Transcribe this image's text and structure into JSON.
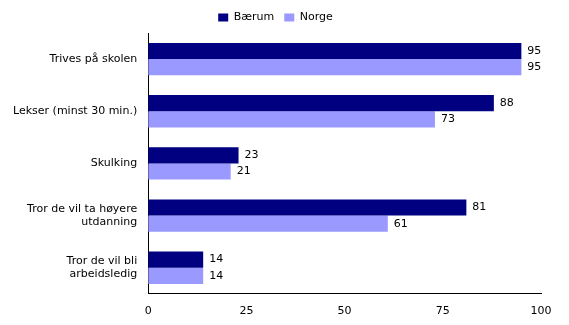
{
  "chart_data": {
    "type": "bar",
    "orientation": "horizontal",
    "categories": [
      "Trives på skolen",
      "Lekser (minst 30 min.)",
      "Skulking",
      "Tror de vil ta høyere utdanning",
      "Tror de vil bli arbeidsledig"
    ],
    "series": [
      {
        "name": "Bærum",
        "color": "#000080",
        "values": [
          95,
          88,
          23,
          81,
          14
        ]
      },
      {
        "name": "Norge",
        "color": "#9999ff",
        "values": [
          95,
          73,
          21,
          61,
          14
        ]
      }
    ],
    "xlim": [
      0,
      100
    ],
    "xticks": [
      0,
      25,
      50,
      75,
      100
    ],
    "grid": false,
    "legend": "top",
    "data_labels": true
  }
}
